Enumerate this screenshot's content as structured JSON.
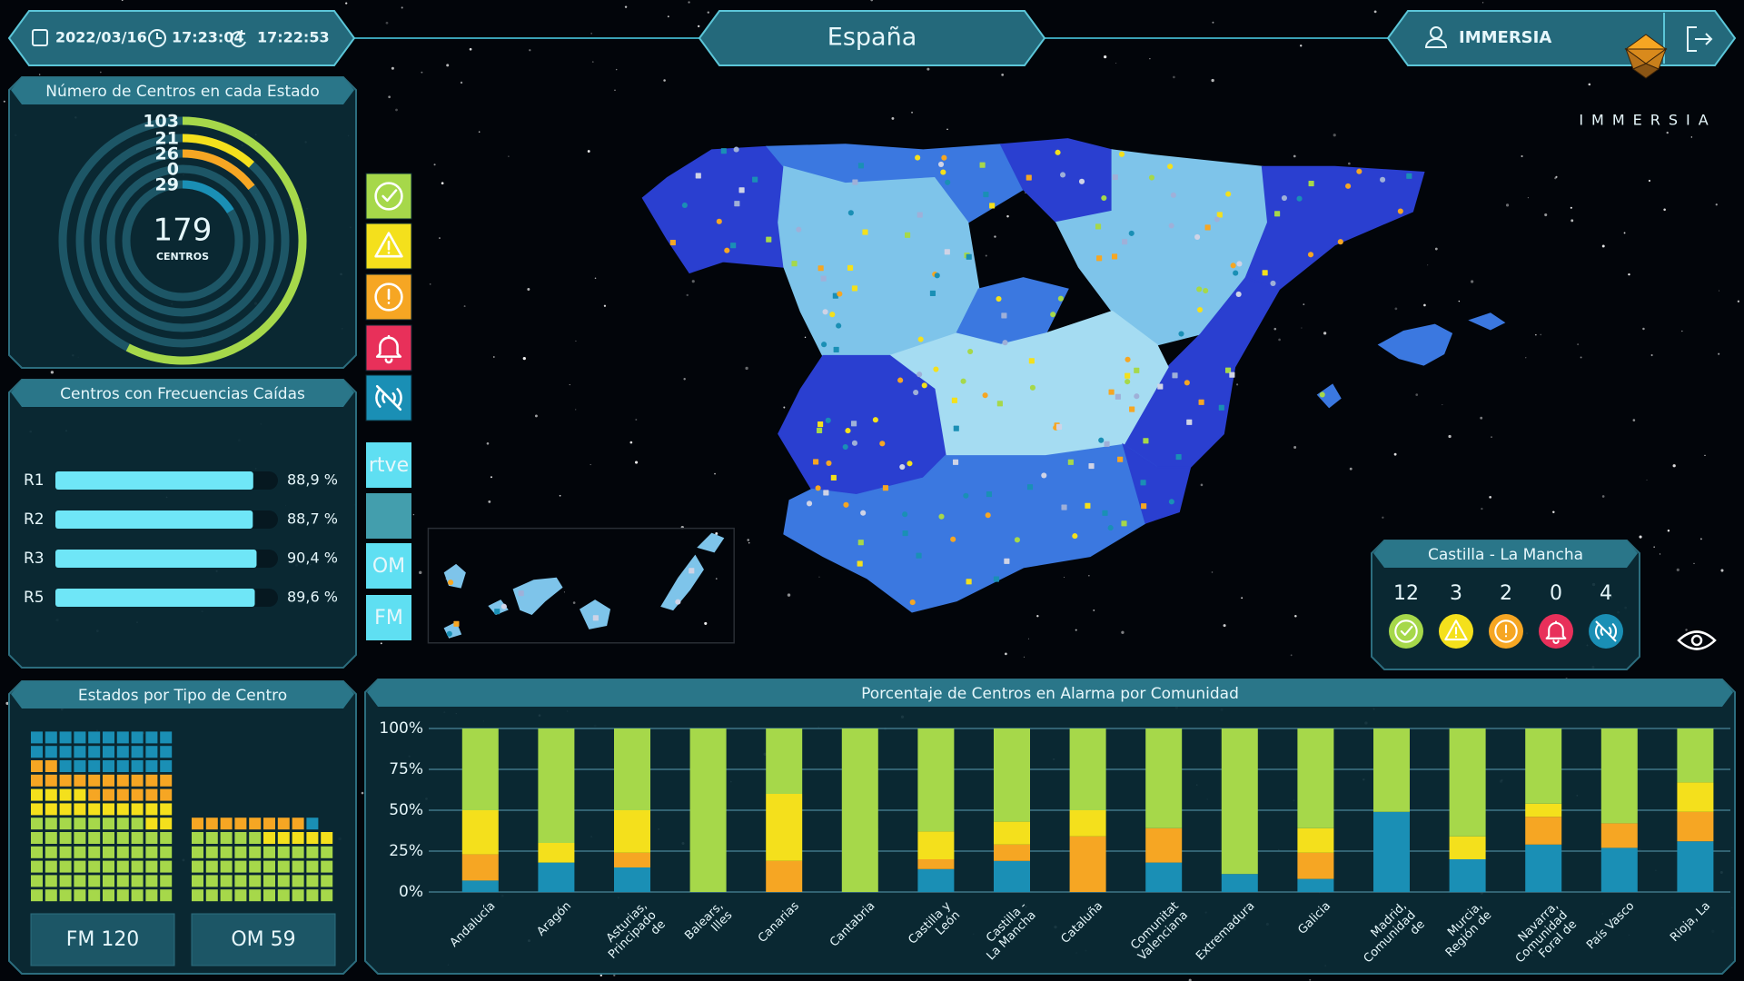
{
  "header": {
    "date": "2022/03/16",
    "time": "17:23:04",
    "refresh_time": "17:22:53",
    "title": "España",
    "user": "IMMERSIA",
    "logo": "IMMERSIA"
  },
  "filters": {
    "buttons": [
      "rtve",
      "OM",
      "FM"
    ]
  },
  "region_panel": {
    "title": "Castilla - La Mancha",
    "counts": [
      12,
      3,
      2,
      0,
      4
    ]
  },
  "chart_data": [
    {
      "type": "radial",
      "title": "Número de Centros en cada Estado",
      "values": [
        103,
        21,
        26,
        0,
        29
      ],
      "colors": [
        "#a6d84a",
        "#f4e01c",
        "#f6a623",
        "#e8305a",
        "#1a8fb5"
      ],
      "total": 179,
      "total_label": "CENTROS"
    },
    {
      "type": "hbar",
      "title": "Centros con Frecuencias Caídas",
      "categories": [
        "R1",
        "R2",
        "R3",
        "R5"
      ],
      "values": [
        88.9,
        88.7,
        90.4,
        89.6
      ],
      "value_labels": [
        "88,9 %",
        "88,7 %",
        "90,4 %",
        "89,6 %"
      ],
      "xlim": [
        0,
        100
      ],
      "color": "#6fe6f7"
    },
    {
      "type": "waffle",
      "title": "Estados por Tipo de Centro",
      "categories": [
        "FM 120",
        "OM 59"
      ],
      "series": [
        {
          "color": "#a6d84a",
          "values": [
            58,
            45
          ]
        },
        {
          "color": "#f4e01c",
          "values": [
            16,
            5
          ]
        },
        {
          "color": "#f6a623",
          "values": [
            18,
            8
          ]
        },
        {
          "color": "#e8305a",
          "values": [
            0,
            0
          ]
        },
        {
          "color": "#1a8fb5",
          "values": [
            28,
            1
          ]
        }
      ]
    },
    {
      "type": "stacked_bar",
      "title": "Porcentaje de Centros en Alarma por Comunidad",
      "categories": [
        "Andalucía",
        "Aragón",
        "Asturias, Principado de",
        "Balears, Illes",
        "Canarias",
        "Cantabria",
        "Castilla y León",
        "Castilla - La Mancha",
        "Cataluña",
        "Comunitat Valenciana",
        "Extremadura",
        "Galicia",
        "Madrid, Comunidad de",
        "Murcia, Región de",
        "Navarra, Comunidad Foral de",
        "País Vasco",
        "Rioja, La"
      ],
      "series": [
        {
          "color": "#1a8fb5",
          "values": [
            7,
            18,
            15,
            0,
            0,
            0,
            14,
            19,
            0,
            18,
            11,
            8,
            49,
            20,
            29,
            27,
            31
          ]
        },
        {
          "color": "#f6a623",
          "values": [
            16,
            0,
            9,
            0,
            19,
            0,
            6,
            10,
            34,
            21,
            0,
            16,
            0,
            0,
            17,
            15,
            18
          ]
        },
        {
          "color": "#f4e01c",
          "values": [
            27,
            12,
            26,
            0,
            41,
            0,
            17,
            14,
            16,
            0,
            0,
            15,
            0,
            14,
            8,
            0,
            18
          ]
        },
        {
          "color": "#a6d84a",
          "values": [
            50,
            70,
            50,
            100,
            40,
            100,
            63,
            57,
            50,
            61,
            89,
            61,
            51,
            66,
            46,
            58,
            33
          ]
        }
      ],
      "ylim": [
        0,
        100
      ],
      "yticks": [
        {
          "value": 0,
          "label": "0%"
        },
        {
          "value": 25,
          "label": "25%"
        },
        {
          "value": 50,
          "label": "50%"
        },
        {
          "value": 75,
          "label": "75%"
        },
        {
          "value": 100,
          "label": "100%"
        }
      ],
      "grid": true
    }
  ]
}
